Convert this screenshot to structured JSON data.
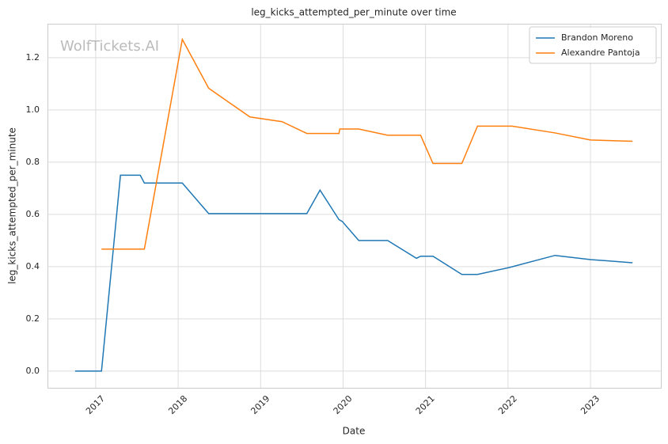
{
  "chart_data": {
    "type": "line",
    "title": "leg_kicks_attempted_per_minute over time",
    "xlabel": "Date",
    "ylabel": "leg_kicks_attempted_per_minute",
    "watermark": "WolfTickets.AI",
    "legend": "upper right",
    "grid": true,
    "xlim": [
      2016.415,
      2023.854
    ],
    "ylim": [
      -0.064,
      1.33
    ],
    "xticks": [
      2017,
      2018,
      2019,
      2020,
      2021,
      2022,
      2023
    ],
    "yticks": [
      {
        "value": 0,
        "label": "0.0"
      },
      0.2,
      0.4,
      0.6,
      0.8,
      {
        "value": 1,
        "label": "1.0"
      },
      1.2
    ],
    "series": [
      {
        "name": "Brandon Moreno",
        "color": "#1f77b4",
        "x": [
          2016.75,
          2017.07,
          2017.3,
          2017.54,
          2017.59,
          2018.05,
          2018.37,
          2019.56,
          2019.72,
          2019.95,
          2019.99,
          2020.19,
          2020.54,
          2020.89,
          2020.94,
          2021.09,
          2021.44,
          2021.63,
          2022.02,
          2022.57,
          2023.0,
          2023.51
        ],
        "values": [
          0,
          0,
          0.75,
          0.75,
          0.72,
          0.72,
          0.603,
          0.603,
          0.693,
          0.58,
          0.573,
          0.5,
          0.5,
          0.432,
          0.44,
          0.44,
          0.37,
          0.37,
          0.397,
          0.443,
          0.427,
          0.415
        ]
      },
      {
        "name": "Alexandre Pantoja",
        "color": "#ff7f0e",
        "x": [
          2017.07,
          2017.59,
          2018.05,
          2018.37,
          2018.87,
          2019.26,
          2019.56,
          2019.95,
          2019.96,
          2020.19,
          2020.54,
          2020.94,
          2021.09,
          2021.44,
          2021.63,
          2022.05,
          2022.57,
          2023.0,
          2023.51
        ],
        "values": [
          0.467,
          0.467,
          1.27,
          1.083,
          0.973,
          0.955,
          0.91,
          0.91,
          0.927,
          0.927,
          0.903,
          0.903,
          0.795,
          0.795,
          0.938,
          0.938,
          0.912,
          0.885,
          0.88
        ]
      }
    ]
  }
}
